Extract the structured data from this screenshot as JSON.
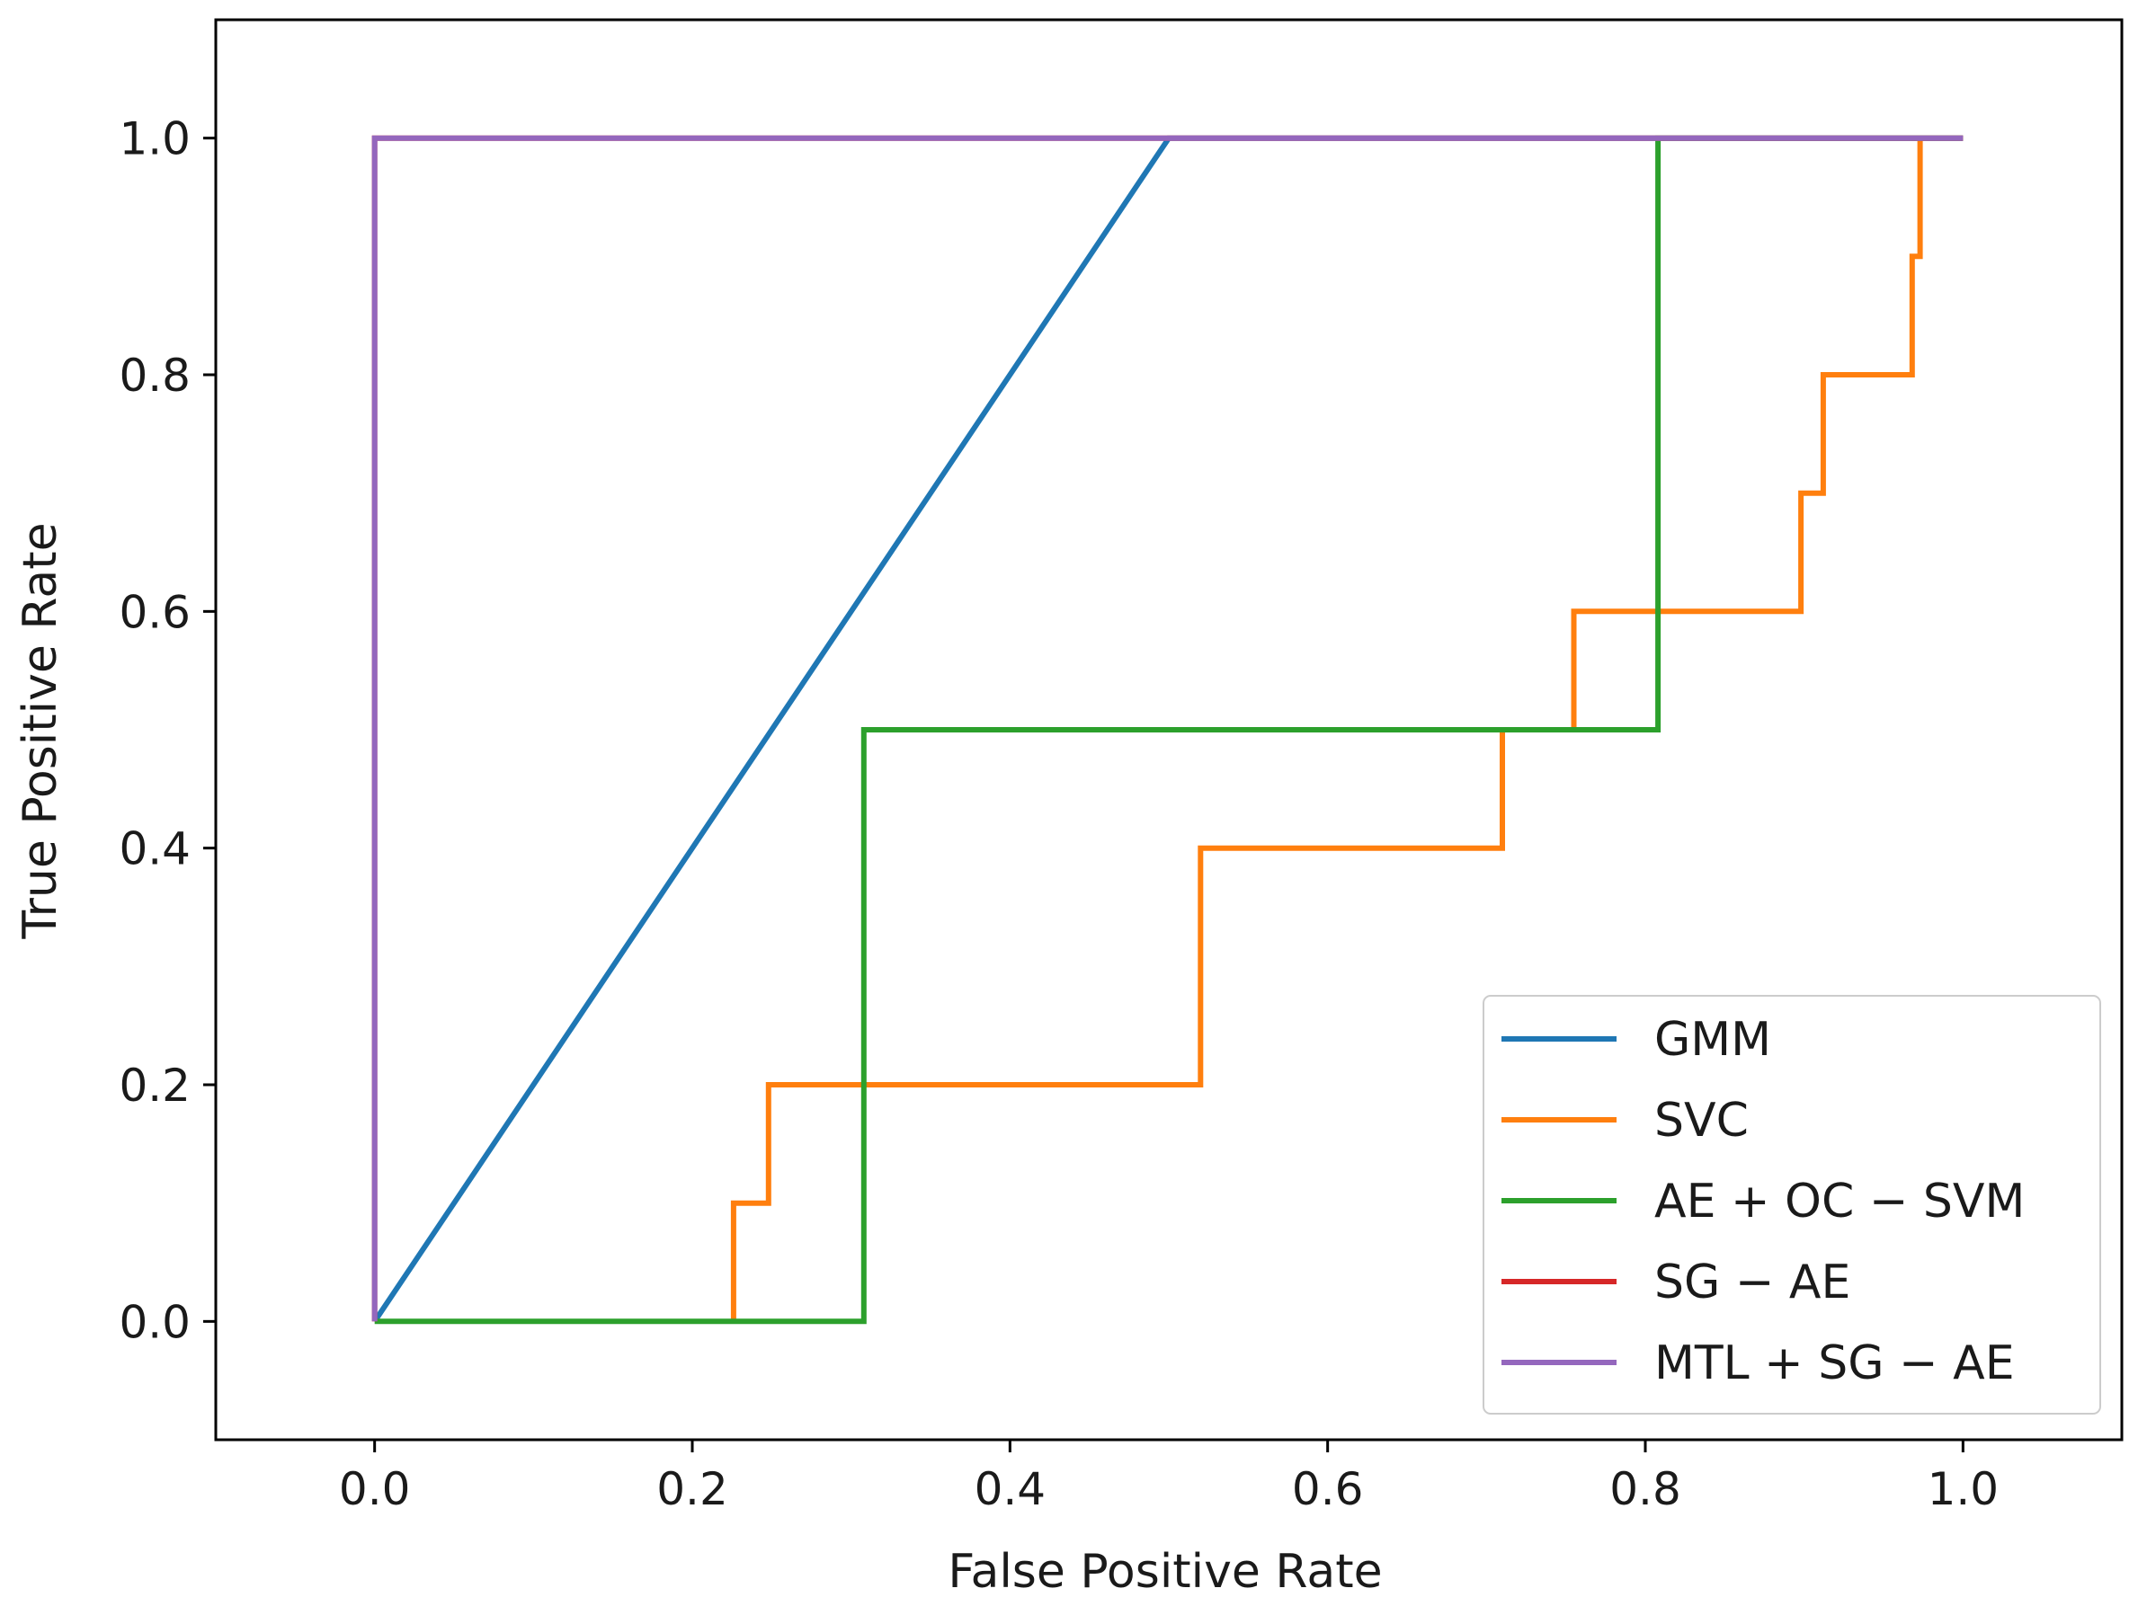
{
  "chart_data": {
    "type": "line",
    "title": "",
    "xlabel": "False Positive Rate",
    "ylabel": "True Positive Rate",
    "xlim": [
      -0.1,
      1.1
    ],
    "ylim": [
      -0.1,
      1.1
    ],
    "xticks": [
      0.0,
      0.2,
      0.4,
      0.6,
      0.8,
      1.0
    ],
    "yticks": [
      0.0,
      0.2,
      0.4,
      0.6,
      0.8,
      1.0
    ],
    "tick_labels_x": [
      "0.0",
      "0.2",
      "0.4",
      "0.6",
      "0.8",
      "1.0"
    ],
    "tick_labels_y": [
      "0.0",
      "0.2",
      "0.4",
      "0.6",
      "0.8",
      "1.0"
    ],
    "grid": false,
    "legend_position": "lower-right",
    "series": [
      {
        "name": "GMM",
        "color": "#1f77b4",
        "x": [
          0.0,
          0.5,
          1.0
        ],
        "y": [
          0.0,
          1.0,
          1.0
        ]
      },
      {
        "name": "SVC",
        "color": "#ff7f0e",
        "x": [
          0.226,
          0.226,
          0.248,
          0.248,
          0.52,
          0.52,
          0.71,
          0.71,
          0.755,
          0.755,
          0.898,
          0.898,
          0.912,
          0.912,
          0.968,
          0.968,
          0.973,
          0.973
        ],
        "y": [
          0.0,
          0.1,
          0.1,
          0.2,
          0.2,
          0.4,
          0.4,
          0.5,
          0.5,
          0.6,
          0.6,
          0.7,
          0.7,
          0.8,
          0.8,
          0.9,
          0.9,
          1.0
        ]
      },
      {
        "name": "AE + OC − SVM",
        "color": "#2ca02c",
        "x": [
          0.0,
          0.308,
          0.308,
          0.808,
          0.808,
          1.0
        ],
        "y": [
          0.0,
          0.0,
          0.5,
          0.5,
          1.0,
          1.0
        ]
      },
      {
        "name": "SG − AE",
        "color": "#d62728",
        "x": [
          0.0,
          0.0,
          1.0
        ],
        "y": [
          0.0,
          1.0,
          1.0
        ]
      },
      {
        "name": "MTL + SG − AE",
        "color": "#9467bd",
        "x": [
          0.0,
          0.0,
          1.0
        ],
        "y": [
          0.0,
          1.0,
          1.0
        ]
      }
    ]
  }
}
